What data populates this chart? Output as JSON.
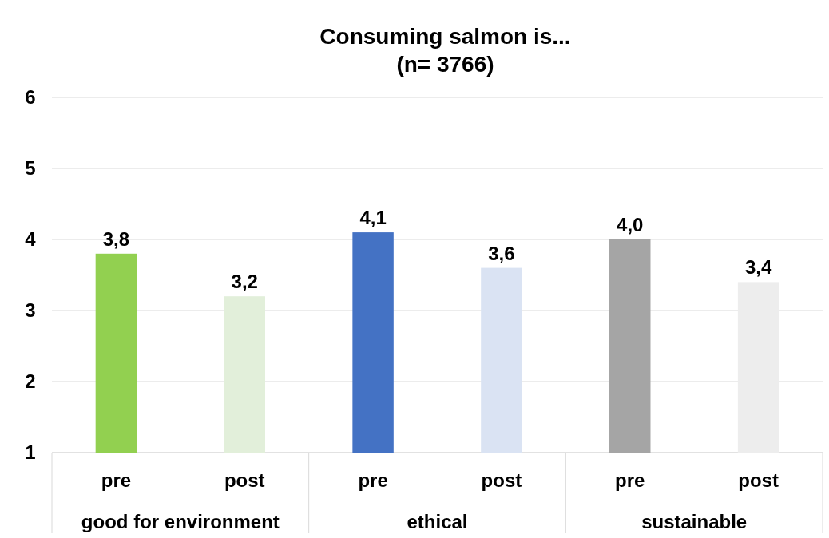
{
  "chart_data": {
    "type": "bar",
    "title": "Consuming salmon is...",
    "subtitle": "(n= 3766)",
    "categories": [
      "pre",
      "post",
      "pre",
      "post",
      "pre",
      "post"
    ],
    "values": [
      3.8,
      3.2,
      4.1,
      3.6,
      4.0,
      3.4
    ],
    "value_labels": [
      "3,8",
      "3,2",
      "4,1",
      "3,6",
      "4,0",
      "3,4"
    ],
    "colors": [
      "#92d050",
      "#e2efda",
      "#4472c4",
      "#dae3f3",
      "#a5a5a5",
      "#ededed"
    ],
    "annotations": [
      "good for environment",
      "ethical",
      "sustainable"
    ],
    "ylim": [
      1,
      6
    ],
    "yticks": [
      1,
      2,
      3,
      4,
      5,
      6
    ],
    "grid": "y"
  }
}
